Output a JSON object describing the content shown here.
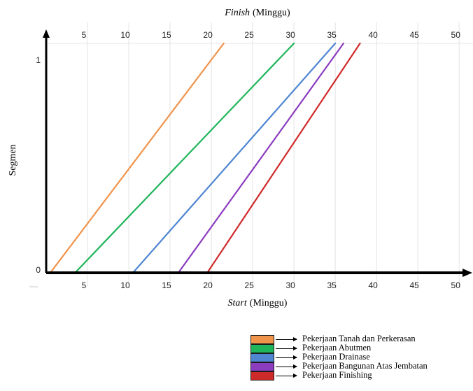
{
  "chart_data": {
    "type": "line",
    "title": "",
    "x_top_label_italic": "Finish",
    "x_top_label_unit": "(Minggu)",
    "x_bottom_label_italic": "Start",
    "x_bottom_label_unit": "(Minggu)",
    "ylabel": "Segmen",
    "xlim": [
      0,
      51
    ],
    "ylim": [
      0,
      1
    ],
    "x_ticks": [
      5,
      10,
      15,
      20,
      25,
      30,
      35,
      40,
      45,
      50
    ],
    "y_ticks": [
      0,
      1
    ],
    "grid": "vertical",
    "legend_position": "bottom-right",
    "series": [
      {
        "name": "Pekerjaan Tanah dan Perkerasan",
        "color": "#f0934b",
        "start": 0.5,
        "finish": 21.5
      },
      {
        "name": "Pekerjaan Abutmen",
        "color": "#1fb55a",
        "start": 3.5,
        "finish": 30.0
      },
      {
        "name": "Pekerjaan Drainase",
        "color": "#4f86d2",
        "start": 10.5,
        "finish": 35.0
      },
      {
        "name": "Pekerjaan Bangunan Atas Jembatan",
        "color": "#8b3cbf",
        "start": 16.0,
        "finish": 36.0
      },
      {
        "name": "Pekerjaan Finishing",
        "color": "#cf2a2a",
        "start": 19.5,
        "finish": 38.0
      }
    ]
  }
}
